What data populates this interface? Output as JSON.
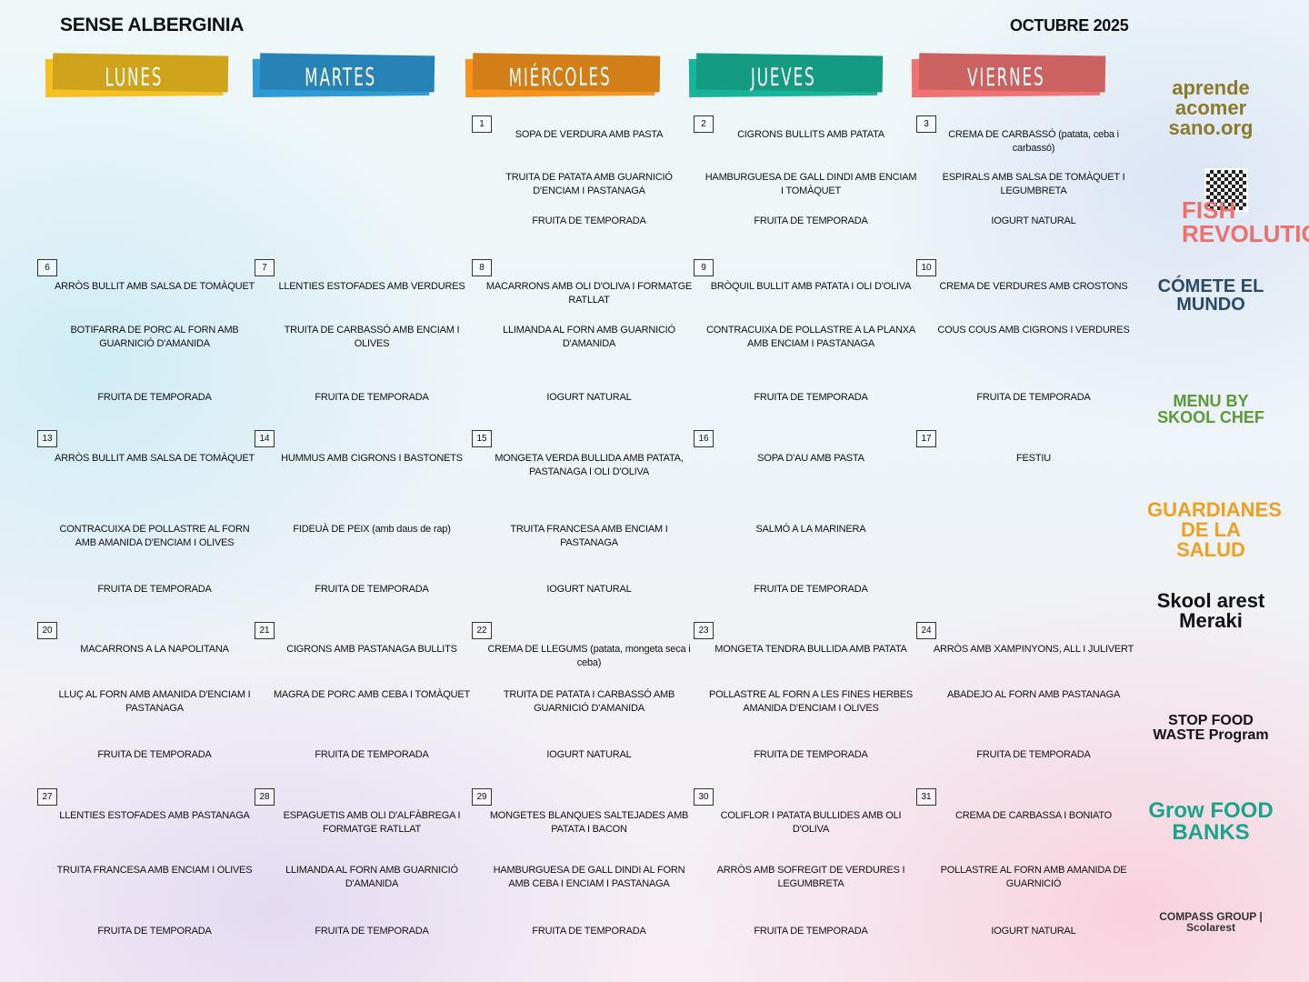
{
  "header": {
    "title": "SENSE ALBERGINIA",
    "month": "OCTUBRE 2025"
  },
  "weekdays": [
    {
      "label": "LUNES",
      "color": "#f5c021"
    },
    {
      "label": "MARTES",
      "color": "#2e9ad6"
    },
    {
      "label": "MIÉRCOLES",
      "color": "#f7941d"
    },
    {
      "label": "JUEVES",
      "color": "#19b59a"
    },
    {
      "label": "VIERNES",
      "color": "#f07272"
    }
  ],
  "weeks": [
    [
      null,
      null,
      {
        "day": "1",
        "dishes": [
          "SOPA DE VERDURA AMB PASTA",
          "TRUITA DE PATATA AMB GUARNICIÓ D'ENCIAM I PASTANAGA",
          "FRUITA DE TEMPORADA"
        ]
      },
      {
        "day": "2",
        "dishes": [
          "CIGRONS BULLITS AMB PATATA",
          "HAMBURGUESA DE GALL DINDI AMB ENCIAM I TOMÀQUET",
          "FRUITA DE TEMPORADA"
        ]
      },
      {
        "day": "3",
        "dishes": [
          "CREMA DE CARBASSÓ (patata, ceba i carbassó)",
          "ESPIRALS AMB SALSA DE TOMÀQUET I LEGUMBRETA",
          "IOGURT NATURAL"
        ]
      }
    ],
    [
      {
        "day": "6",
        "dishes": [
          "ARRÒS BULLIT AMB SALSA DE TOMÀQUET",
          "BOTIFARRA DE PORC AL FORN AMB GUARNICIÓ D'AMANIDA",
          "FRUITA DE TEMPORADA"
        ]
      },
      {
        "day": "7",
        "dishes": [
          "LLENTIES ESTOFADES AMB VERDURES",
          "TRUITA DE CARBASSÓ AMB ENCIAM I OLIVES",
          "FRUITA DE TEMPORADA"
        ]
      },
      {
        "day": "8",
        "dishes": [
          "MACARRONS AMB OLI D'OLIVA I FORMATGE RATLLAT",
          "LLIMANDA AL FORN AMB GUARNICIÓ D'AMANIDA",
          "IOGURT NATURAL"
        ]
      },
      {
        "day": "9",
        "dishes": [
          "BRÒQUIL BULLIT AMB PATATA I OLI D'OLIVA",
          "CONTRACUIXA DE POLLASTRE A LA PLANXA AMB ENCIAM I PASTANAGA",
          "FRUITA DE TEMPORADA"
        ]
      },
      {
        "day": "10",
        "dishes": [
          "CREMA DE VERDURES AMB CROSTONS",
          "COUS COUS AMB CIGRONS I VERDURES",
          "FRUITA DE TEMPORADA"
        ]
      }
    ],
    [
      {
        "day": "13",
        "dishes": [
          "ARRÒS BULLIT AMB SALSA DE TOMÀQUET",
          "CONTRACUIXA DE POLLASTRE AL FORN AMB AMANIDA D'ENCIAM I OLIVES",
          "FRUITA DE TEMPORADA"
        ]
      },
      {
        "day": "14",
        "dishes": [
          "HUMMUS AMB CIGRONS I BASTONETS",
          "FIDEUÀ DE PEIX (amb daus de rap)",
          "FRUITA DE TEMPORADA"
        ]
      },
      {
        "day": "15",
        "dishes": [
          "MONGETA VERDA BULLIDA AMB PATATA, PASTANAGA I OLI D'OLIVA",
          "TRUITA FRANCESA AMB ENCIAM I PASTANAGA",
          "IOGURT NATURAL"
        ]
      },
      {
        "day": "16",
        "dishes": [
          "SOPA D'AU AMB PASTA",
          "SALMÓ A LA MARINERA",
          "FRUITA DE TEMPORADA"
        ]
      },
      {
        "day": "17",
        "dishes": [
          "FESTIU"
        ]
      }
    ],
    [
      {
        "day": "20",
        "dishes": [
          "MACARRONS A LA NAPOLITANA",
          "LLUÇ AL FORN AMB AMANIDA D'ENCIAM I PASTANAGA",
          "FRUITA DE TEMPORADA"
        ]
      },
      {
        "day": "21",
        "dishes": [
          "CIGRONS AMB PASTANAGA BULLITS",
          "MAGRA DE PORC AMB CEBA I TOMÀQUET",
          "FRUITA DE TEMPORADA"
        ]
      },
      {
        "day": "22",
        "dishes": [
          "CREMA DE LLEGUMS (patata, mongeta seca i ceba)",
          "TRUITA DE PATATA I CARBASSÓ AMB GUARNICIÓ D'AMANIDA",
          "IOGURT NATURAL"
        ]
      },
      {
        "day": "23",
        "dishes": [
          "MONGETA TENDRA BULLIDA AMB PATATA",
          "POLLASTRE AL FORN A LES FINES HERBES AMANIDA D'ENCIAM I OLIVES",
          "FRUITA DE TEMPORADA"
        ]
      },
      {
        "day": "24",
        "dishes": [
          "ARRÒS AMB XAMPINYONS, ALL I JULIVERT",
          "ABADEJO AL FORN AMB PASTANAGA",
          "FRUITA DE TEMPORADA"
        ]
      }
    ],
    [
      {
        "day": "27",
        "dishes": [
          "LLENTIES ESTOFADES AMB PASTANAGA",
          "TRUITA FRANCESA AMB ENCIAM I OLIVES",
          "FRUITA DE TEMPORADA"
        ]
      },
      {
        "day": "28",
        "dishes": [
          "ESPAGUETIS AMB OLI D'ALFÀBREGA I FORMATGE RATLLAT",
          "LLIMANDA AL FORN AMB GUARNICIÓ D'AMANIDA",
          "FRUITA DE TEMPORADA"
        ]
      },
      {
        "day": "29",
        "dishes": [
          "MONGETES BLANQUES SALTEJADES AMB PATATA I BACON",
          "HAMBURGUESA DE GALL DINDI AL FORN AMB CEBA I ENCIAM I PASTANAGA",
          "FRUITA DE TEMPORADA"
        ]
      },
      {
        "day": "30",
        "dishes": [
          "COLIFLOR I PATATA BULLIDES AMB OLI D'OLIVA",
          "ARRÒS AMB SOFREGIT DE VERDURES I LEGUMBRETA",
          "FRUITA DE TEMPORADA"
        ]
      },
      {
        "day": "31",
        "dishes": [
          "CREMA DE CARBASSA I BONIATO",
          "POLLASTRE AL FORN AMB AMANIDA DE GUARNICIÓ",
          "IOGURT NATURAL"
        ]
      }
    ]
  ],
  "logos": [
    {
      "text": "aprende acomer sano.org",
      "color": "#8a7a2a"
    },
    {
      "text": "FISH REVOLUTION",
      "color": "#ef6f6c"
    },
    {
      "text": "CÓMETE EL MUNDO",
      "color": "#2a4a6a"
    },
    {
      "text": "MENU BY SKOOL CHEF",
      "color": "#5a9a3a"
    },
    {
      "text": "GUARDIANES DE LA SALUD",
      "color": "#f0a020"
    },
    {
      "text": "Skool arest Meraki",
      "color": "#111111"
    },
    {
      "text": "STOP FOOD WASTE Program",
      "color": "#111111"
    },
    {
      "text": "Grow FOOD BANKS",
      "color": "#1aa58a"
    },
    {
      "text": "COMPASS GROUP | Scolarest",
      "color": "#333333"
    }
  ]
}
